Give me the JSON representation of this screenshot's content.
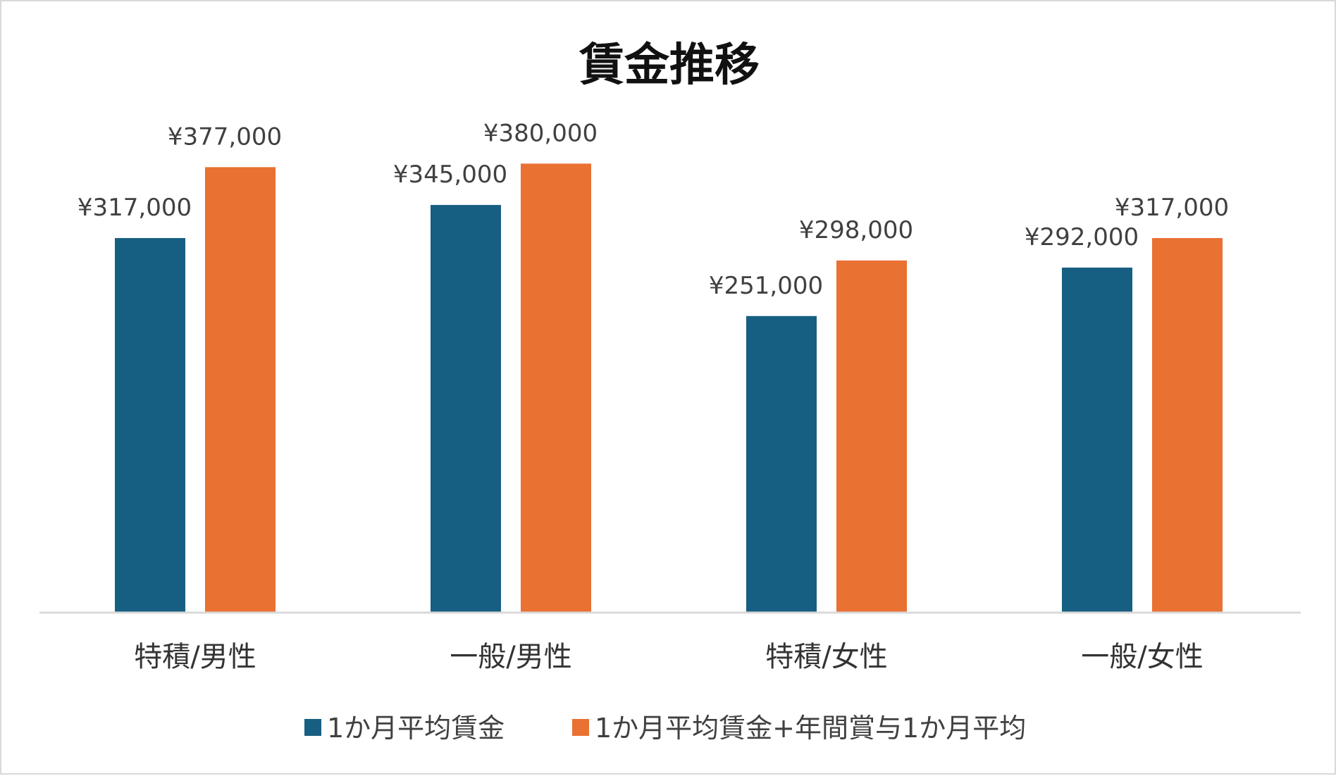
{
  "chart_data": {
    "type": "bar",
    "title": "賃金推移",
    "xlabel": "",
    "ylabel": "",
    "categories": [
      "特積/男性",
      "一般/男性",
      "特積/女性",
      "一般/女性"
    ],
    "series": [
      {
        "name": "1か月平均賃金",
        "color": "#175f82",
        "values": [
          317000,
          345000,
          251000,
          292000
        ],
        "labels": [
          "¥317,000",
          "¥345,000",
          "¥251,000",
          "¥292,000"
        ]
      },
      {
        "name": "1か月平均賃金+年間賞与1か月平均",
        "color": "#e97132",
        "values": [
          377000,
          380000,
          298000,
          317000
        ],
        "labels": [
          "¥377,000",
          "¥380,000",
          "¥298,000",
          "¥317,000"
        ]
      }
    ],
    "ylim": [
      0,
      410000
    ],
    "grid": false,
    "legend": "bottom",
    "axis_color": "#d9d9d9"
  }
}
